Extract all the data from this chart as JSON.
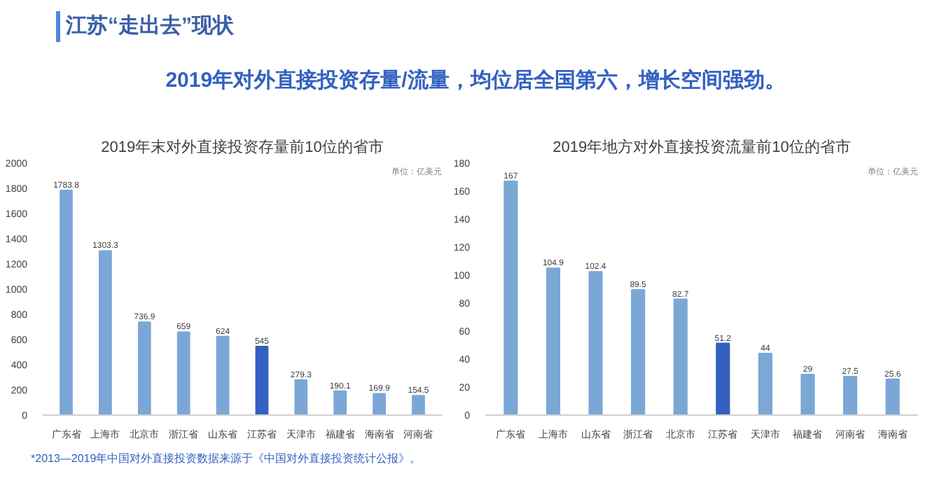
{
  "chart_data": [
    {
      "type": "bar",
      "title": "2019年末对外直接投资存量前10位的省市",
      "categories": [
        "广东省",
        "上海市",
        "北京市",
        "浙江省",
        "山东省",
        "江苏省",
        "天津市",
        "福建省",
        "海南省",
        "河南省"
      ],
      "values": [
        1783.8,
        1303.3,
        736.9,
        659,
        624,
        545,
        279.3,
        190.1,
        169.9,
        154.5
      ],
      "colors": [
        "#7ba7d6",
        "#7ba7d6",
        "#7ba7d6",
        "#7ba7d6",
        "#7ba7d6",
        "#3461c1",
        "#7ba7d6",
        "#7ba7d6",
        "#7ba7d6",
        "#7ba7d6"
      ],
      "ylim": [
        0,
        2000
      ],
      "yticks": [
        0,
        200,
        400,
        600,
        800,
        1000,
        1200,
        1400,
        1600,
        1800,
        2000
      ],
      "grid": false,
      "data_labels": true,
      "annotations": [
        "江苏“走出去”现状",
        "2019年对外直接投资存量/流量，均位居全国第六，增长空间强劲。",
        "单位：亿美元",
        "*2013—2019年中国对外直接投资数据来源于《中国对外直接投资统计公报》。"
      ]
    },
    {
      "type": "bar",
      "title": "2019年地方对外直接投资流量前10位的省市",
      "categories": [
        "广东省",
        "上海市",
        "山东省",
        "浙江省",
        "北京市",
        "江苏省",
        "天津市",
        "福建省",
        "河南省",
        "海南省"
      ],
      "values": [
        167,
        104.9,
        102.4,
        89.5,
        82.7,
        51.2,
        44,
        29,
        27.5,
        25.6
      ],
      "colors": [
        "#7ba7d6",
        "#7ba7d6",
        "#7ba7d6",
        "#7ba7d6",
        "#7ba7d6",
        "#3461c1",
        "#7ba7d6",
        "#7ba7d6",
        "#7ba7d6",
        "#7ba7d6"
      ],
      "ylim": [
        0,
        180
      ],
      "yticks": [
        0,
        20,
        40,
        60,
        80,
        100,
        120,
        140,
        160,
        180
      ],
      "grid": false,
      "data_labels": true,
      "annotations": [
        "单位：亿美元"
      ]
    }
  ]
}
